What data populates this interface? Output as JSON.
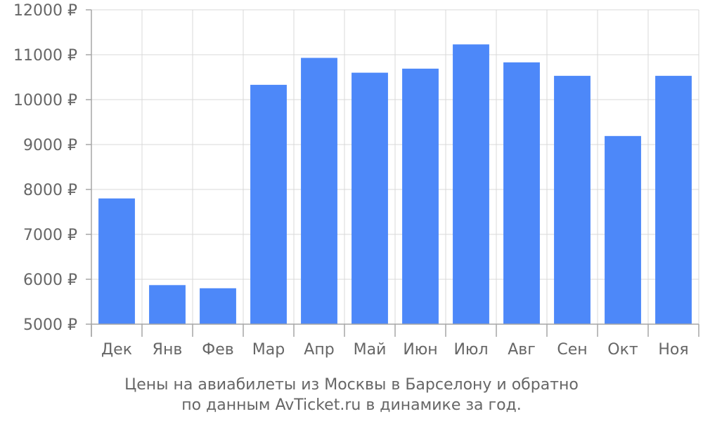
{
  "chart_data": {
    "type": "bar",
    "categories": [
      "Дек",
      "Янв",
      "Фев",
      "Мар",
      "Апр",
      "Май",
      "Июн",
      "Июл",
      "Авг",
      "Сен",
      "Окт",
      "Ноя"
    ],
    "values": [
      7800,
      5870,
      5800,
      10330,
      10930,
      10600,
      10690,
      11230,
      10830,
      10530,
      9190,
      10530
    ],
    "ylim": [
      5000,
      12000
    ],
    "yticks": [
      5000,
      6000,
      7000,
      8000,
      9000,
      10000,
      11000,
      12000
    ],
    "ytick_labels": [
      "5000 ₽",
      "6000 ₽",
      "7000 ₽",
      "8000 ₽",
      "9000 ₽",
      "10000 ₽",
      "11000 ₽",
      "12000 ₽"
    ],
    "bar_color": "#4d88f9",
    "grid": true,
    "caption_line1": "Цены на авиабилеты из Москвы в Барселону и обратно",
    "caption_line2": "по данным AvTicket.ru в динамике за год."
  }
}
